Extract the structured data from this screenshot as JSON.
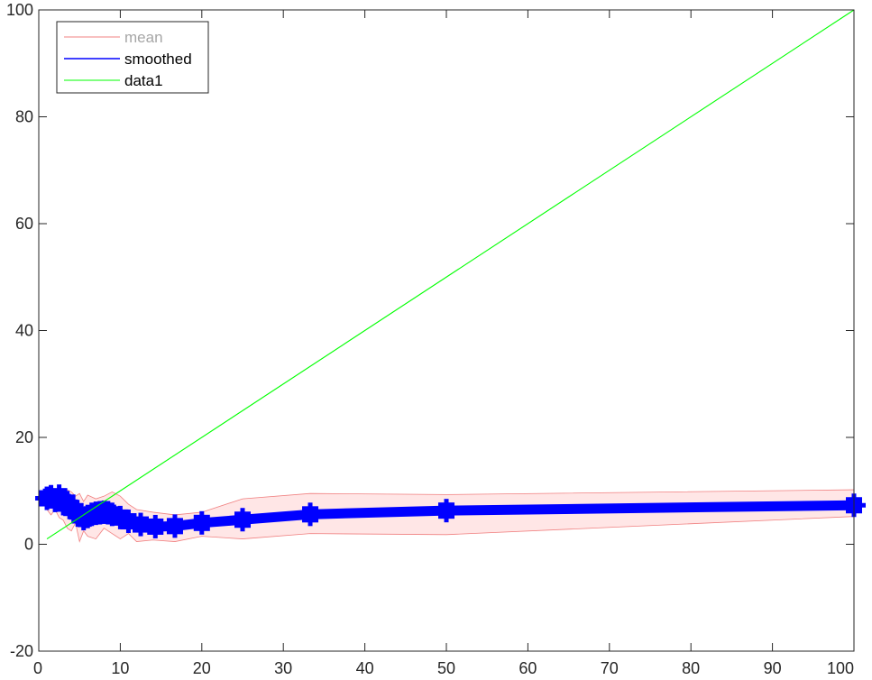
{
  "chart_data": {
    "type": "line",
    "title": "",
    "xlabel": "",
    "ylabel": "",
    "xlim": [
      0,
      100
    ],
    "ylim": [
      -20,
      100
    ],
    "xticks": [
      0,
      10,
      20,
      30,
      40,
      50,
      60,
      70,
      80,
      90,
      100
    ],
    "yticks": [
      -20,
      0,
      20,
      40,
      60,
      80,
      100
    ],
    "grid": false,
    "box": true,
    "legend": {
      "position": "top-left",
      "entries": [
        "mean",
        "smoothed",
        "data1"
      ]
    },
    "series": [
      {
        "name": "mean",
        "kind": "shaded-band",
        "color": "#f08080",
        "fill_color": "#ffe6e6",
        "x": [
          1,
          1.5,
          2,
          2.5,
          3,
          3.5,
          4,
          4.5,
          5,
          5.5,
          6,
          7,
          8,
          9,
          10,
          11,
          12,
          14,
          16.7,
          20,
          25,
          33.3,
          50,
          100
        ],
        "upper": [
          10.5,
          11,
          10,
          10.8,
          9.5,
          10.2,
          9.8,
          9,
          9.5,
          8,
          9.2,
          8.5,
          9,
          9.8,
          9,
          7.5,
          6.5,
          6,
          5.5,
          6,
          8.5,
          9.5,
          9.3,
          10.2
        ],
        "lower": [
          6.5,
          5.5,
          6.5,
          5,
          4.5,
          3,
          2.5,
          4,
          0.5,
          2.5,
          1.5,
          1,
          3,
          2,
          1,
          2,
          0.5,
          0.8,
          0.5,
          1.5,
          1,
          2,
          1.8,
          5.2
        ]
      },
      {
        "name": "smoothed",
        "color": "#0000ff",
        "x": [
          1,
          1.5,
          2,
          2.5,
          3,
          3.5,
          4,
          4.5,
          5,
          5.5,
          6,
          6.5,
          7,
          7.5,
          8,
          8.5,
          9,
          10,
          11,
          12.5,
          14.3,
          16.7,
          20,
          25,
          33.3,
          50,
          100
        ],
        "values": [
          8.6,
          8.9,
          8.2,
          9.0,
          7.6,
          7.8,
          6.8,
          6.2,
          5.4,
          4.8,
          5.2,
          5.6,
          5.8,
          5.9,
          6.0,
          5.9,
          5.6,
          5.0,
          4.3,
          3.7,
          3.3,
          3.4,
          4.0,
          4.6,
          5.6,
          6.3,
          7.3
        ]
      },
      {
        "name": "data1",
        "color": "#00ff00",
        "x": [
          1,
          100
        ],
        "values": [
          1,
          100
        ]
      }
    ]
  }
}
